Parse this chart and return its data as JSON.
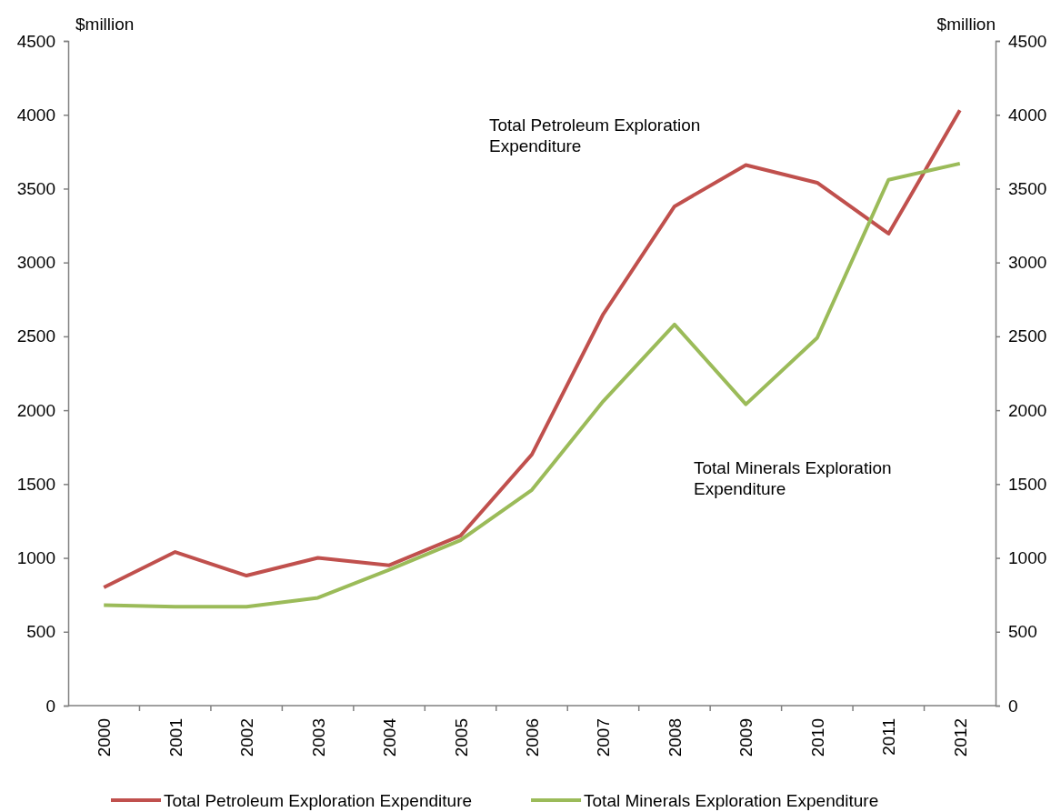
{
  "chart_data": {
    "type": "line",
    "ylabel": "$million",
    "y2label": "$million",
    "categories": [
      "2000",
      "2001",
      "2002",
      "2003",
      "2004",
      "2005",
      "2006",
      "2007",
      "2008",
      "2009",
      "2010",
      "2011",
      "2012"
    ],
    "series": [
      {
        "name": "Total Petroleum Exploration Expenditure",
        "color": "#c0504d",
        "values": [
          800,
          1040,
          880,
          1000,
          950,
          1150,
          1700,
          2650,
          3380,
          3660,
          3540,
          3195,
          4030
        ]
      },
      {
        "name": "Total Minerals Exploration Expenditure",
        "color": "#9bbb59",
        "values": [
          680,
          670,
          670,
          730,
          920,
          1120,
          1460,
          2060,
          2580,
          2040,
          2490,
          3560,
          3670
        ]
      }
    ],
    "ylim": [
      0,
      4500
    ],
    "yticks": [
      0,
      500,
      1000,
      1500,
      2000,
      2500,
      3000,
      3500,
      4000,
      4500
    ],
    "y2lim": [
      0,
      4500
    ],
    "y2ticks": [
      0,
      500,
      1000,
      1500,
      2000,
      2500,
      3000,
      3500,
      4000,
      4500
    ],
    "annotations": [
      "Total Petroleum Exploration\nExpenditure",
      "Total Minerals Exploration\nExpenditure"
    ],
    "legend": "bottom",
    "grid": false,
    "marker": "none",
    "line_style": "solid"
  }
}
